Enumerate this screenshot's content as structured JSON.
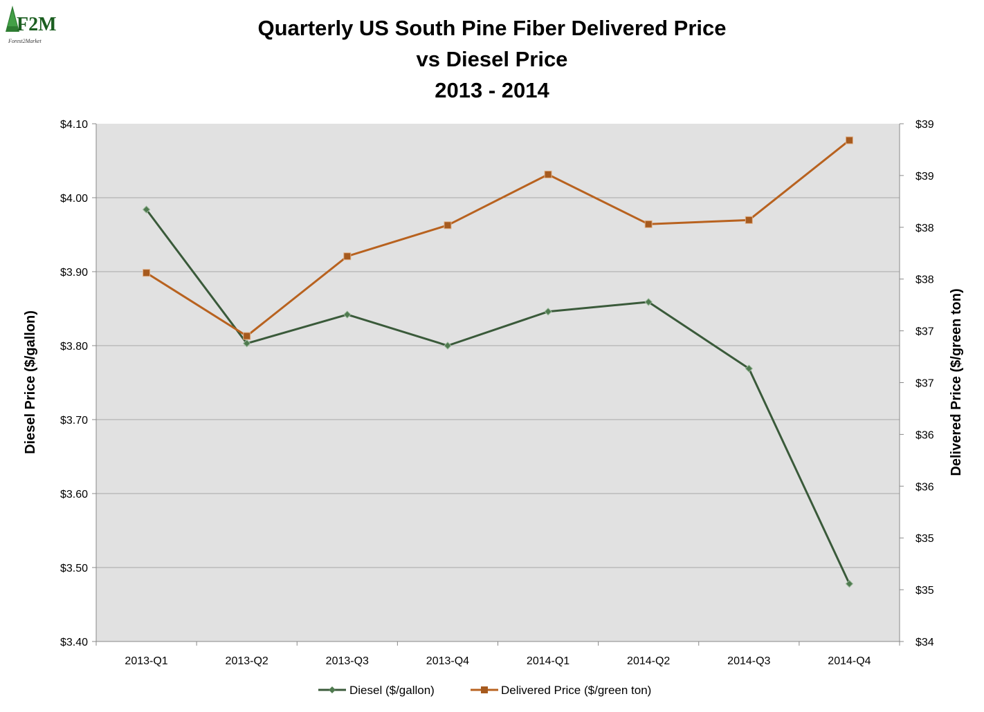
{
  "logo": {
    "mark": "F2M",
    "caption": "Forest2Market"
  },
  "colors": {
    "diesel": "#3a5a3a",
    "diesel_marker": "#4f7a4f",
    "delivered": "#b8621f",
    "delivered_marker": "#a65a1e",
    "plot_background": "#e1e1e1",
    "gridline": "#a8a8a8"
  },
  "chart_data": {
    "type": "line",
    "title": [
      "Quarterly US South Pine Fiber Delivered Price",
      "vs Diesel Price",
      "2013 - 2014"
    ],
    "categories": [
      "2013-Q1",
      "2013-Q2",
      "2013-Q3",
      "2013-Q4",
      "2014-Q1",
      "2014-Q2",
      "2014-Q3",
      "2014-Q4"
    ],
    "y_left": {
      "label": "Diesel Price ($/gallon)",
      "min": 3.4,
      "max": 4.1,
      "tick_labels": [
        "$4.10",
        "$4.00",
        "$3.90",
        "$3.80",
        "$3.70",
        "$3.60",
        "$3.50",
        "$3.40"
      ]
    },
    "y_right": {
      "label": "Delivered Price ($/green ton)",
      "min": 34.0,
      "max": 39.0,
      "tick_labels": [
        "$39",
        "$39",
        "$38",
        "$38",
        "$37",
        "$37",
        "$36",
        "$36",
        "$35",
        "$35",
        "$34"
      ]
    },
    "series": [
      {
        "name": "Diesel ($/gallon)",
        "axis": "left",
        "marker": "diamond",
        "values": [
          3.984,
          3.803,
          3.842,
          3.8,
          3.846,
          3.859,
          3.769,
          3.478
        ]
      },
      {
        "name": "Delivered Price ($/green ton)",
        "axis": "right",
        "marker": "square",
        "values": [
          37.56,
          36.95,
          37.72,
          38.02,
          38.51,
          38.03,
          38.07,
          38.84
        ]
      }
    ],
    "grid": true,
    "legend": "bottom"
  }
}
